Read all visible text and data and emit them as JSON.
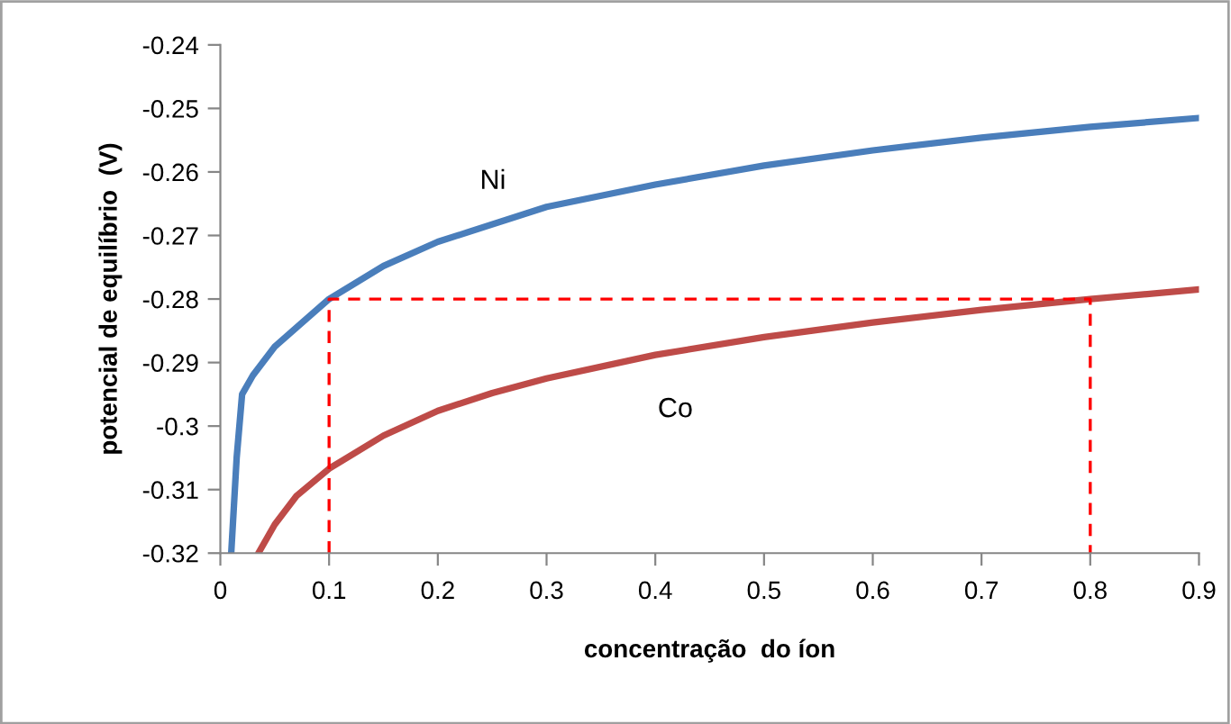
{
  "chart_data": {
    "type": "line",
    "xlabel": "concentração  do íon",
    "ylabel": "potencial de equilíbrio  (V)",
    "xlim": [
      0,
      0.9
    ],
    "xticks": [
      0,
      0.1,
      0.2,
      0.3,
      0.4,
      0.5,
      0.6,
      0.7,
      0.8,
      0.9
    ],
    "ylim": [
      -0.32,
      -0.24
    ],
    "yticks": [
      -0.32,
      -0.31,
      -0.3,
      -0.29,
      -0.28,
      -0.27,
      -0.26,
      -0.25,
      -0.24
    ],
    "grid": false,
    "legend": false,
    "marker": "none",
    "series": [
      {
        "name": "Ni",
        "color": "#4a7ebb",
        "x": [
          0.01,
          0.015,
          0.02,
          0.03,
          0.05,
          0.07,
          0.1,
          0.15,
          0.2,
          0.3,
          0.4,
          0.5,
          0.6,
          0.7,
          0.8,
          0.9
        ],
        "values": [
          -0.32,
          -0.305,
          -0.295,
          -0.292,
          -0.2875,
          -0.2845,
          -0.28,
          -0.2748,
          -0.271,
          -0.2655,
          -0.262,
          -0.259,
          -0.2566,
          -0.2546,
          -0.2529,
          -0.2515
        ]
      },
      {
        "name": "Co",
        "color": "#be4b48",
        "x": [
          0.035,
          0.05,
          0.07,
          0.1,
          0.15,
          0.2,
          0.25,
          0.3,
          0.4,
          0.5,
          0.6,
          0.7,
          0.8,
          0.9
        ],
        "values": [
          -0.32,
          -0.3155,
          -0.311,
          -0.3067,
          -0.3015,
          -0.2976,
          -0.2948,
          -0.2925,
          -0.2888,
          -0.286,
          -0.2837,
          -0.2817,
          -0.28,
          -0.2785
        ]
      },
      {
        "color": "#ff0000",
        "line_style": "dashed",
        "x": [
          0.1,
          0.1,
          0.8,
          0.8
        ],
        "values": [
          -0.32,
          -0.28,
          -0.28,
          -0.32
        ]
      }
    ]
  }
}
